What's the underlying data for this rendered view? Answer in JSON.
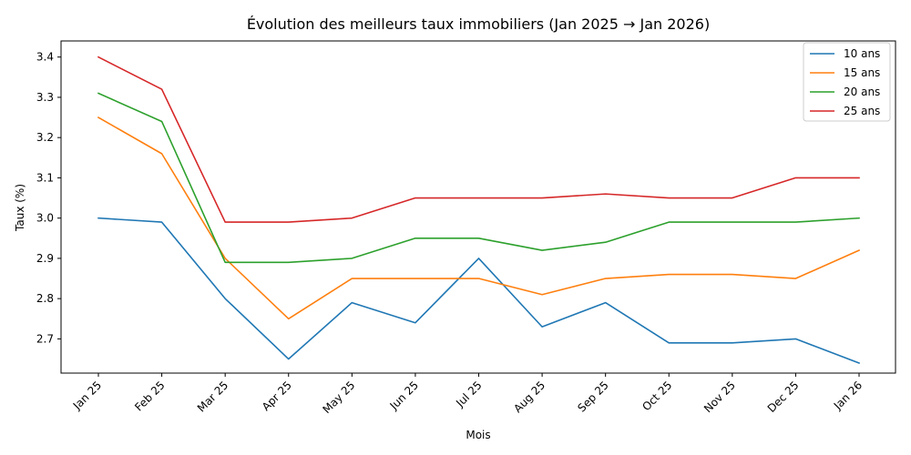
{
  "chart_data": {
    "type": "line",
    "title": "Évolution des meilleurs taux immobiliers (Jan 2025 → Jan 2026)",
    "xlabel": "Mois",
    "ylabel": "Taux (%)",
    "categories": [
      "Jan 25",
      "Feb 25",
      "Mar 25",
      "Apr 25",
      "May 25",
      "Jun 25",
      "Jul 25",
      "Aug 25",
      "Sep 25",
      "Oct 25",
      "Nov 25",
      "Dec 25",
      "Jan 26"
    ],
    "ylim": [
      2.615,
      3.44
    ],
    "yticks": [
      "2.7",
      "2.8",
      "2.9",
      "3.0",
      "3.1",
      "3.2",
      "3.3",
      "3.4"
    ],
    "grid": false,
    "legend_position": "top-right",
    "series": [
      {
        "name": "10 ans",
        "color": "#1f77b4",
        "values": [
          3.0,
          2.99,
          2.8,
          2.65,
          2.79,
          2.74,
          2.9,
          2.73,
          2.79,
          2.69,
          2.69,
          2.7,
          2.64
        ]
      },
      {
        "name": "15 ans",
        "color": "#ff7f0e",
        "values": [
          3.25,
          3.16,
          2.9,
          2.75,
          2.85,
          2.85,
          2.85,
          2.81,
          2.85,
          2.86,
          2.86,
          2.85,
          2.92
        ]
      },
      {
        "name": "20 ans",
        "color": "#2ca02c",
        "values": [
          3.31,
          3.24,
          2.89,
          2.89,
          2.9,
          2.95,
          2.95,
          2.92,
          2.94,
          2.99,
          2.99,
          2.99,
          3.0
        ]
      },
      {
        "name": "25 ans",
        "color": "#d62728",
        "values": [
          3.4,
          3.32,
          2.99,
          2.99,
          3.0,
          3.05,
          3.05,
          3.05,
          3.06,
          3.05,
          3.05,
          3.1,
          3.1
        ]
      }
    ]
  }
}
